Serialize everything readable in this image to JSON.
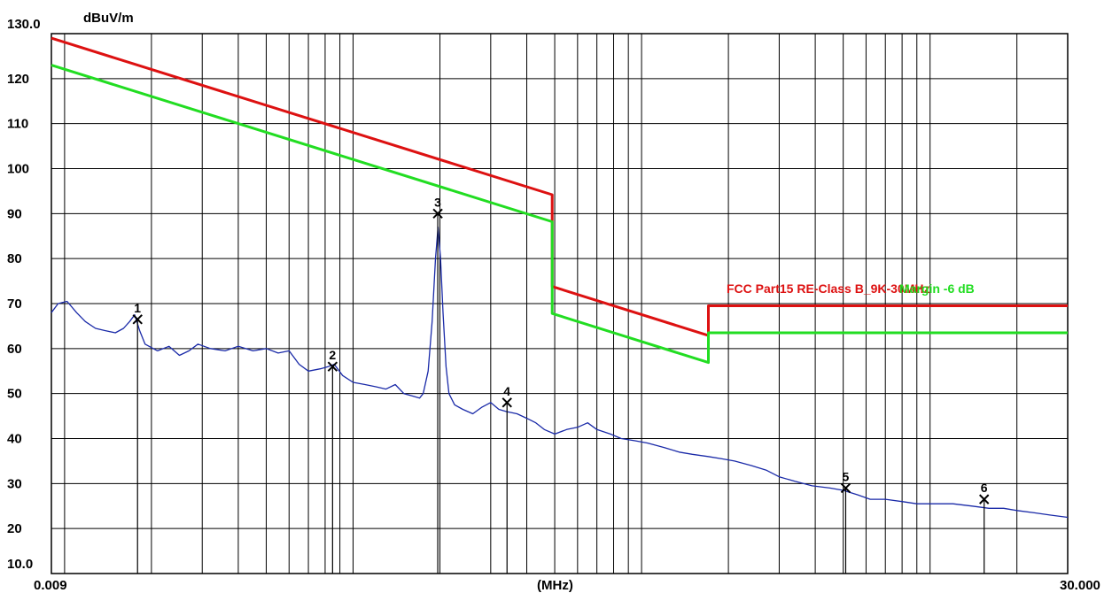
{
  "chart_data": {
    "type": "line",
    "ylabel_unit": "dBuV/m",
    "xlabel_unit": "(MHz)",
    "x_scale": "log",
    "xlim": [
      0.009,
      30.0
    ],
    "ylim": [
      10.0,
      130.0
    ],
    "x_tick_labels": [
      "0.009",
      "(MHz)",
      "30.000"
    ],
    "y_tick_labels": [
      "130.0",
      "120",
      "110",
      "100",
      "90",
      "80",
      "70",
      "60",
      "50",
      "40",
      "30",
      "20",
      "10.0"
    ],
    "y_ticks": [
      130,
      120,
      110,
      100,
      90,
      80,
      70,
      60,
      50,
      40,
      30,
      20,
      10
    ],
    "grid": true,
    "series": [
      {
        "name": "FCC Part15 RE-Class B_9K-30MHz",
        "color": "#dd1111",
        "points": [
          [
            0.009,
            129
          ],
          [
            0.49,
            94.2
          ],
          [
            0.49,
            73.8
          ],
          [
            1.705,
            62.9
          ],
          [
            1.705,
            69.5
          ],
          [
            30.0,
            69.5
          ]
        ]
      },
      {
        "name": "Margin -6 dB",
        "color": "#22dd22",
        "points": [
          [
            0.009,
            123
          ],
          [
            0.49,
            88.2
          ],
          [
            0.49,
            67.8
          ],
          [
            1.705,
            56.9
          ],
          [
            1.705,
            63.5
          ],
          [
            30.0,
            63.5
          ]
        ]
      },
      {
        "color": "#1a2aa8",
        "points": [
          [
            0.009,
            68
          ],
          [
            0.0095,
            70
          ],
          [
            0.0102,
            70.5
          ],
          [
            0.011,
            68
          ],
          [
            0.0118,
            66
          ],
          [
            0.0128,
            64.5
          ],
          [
            0.0138,
            64
          ],
          [
            0.015,
            63.5
          ],
          [
            0.016,
            64.5
          ],
          [
            0.0168,
            66
          ],
          [
            0.0175,
            67.5
          ],
          [
            0.0182,
            64
          ],
          [
            0.019,
            61
          ],
          [
            0.021,
            59.5
          ],
          [
            0.023,
            60.5
          ],
          [
            0.025,
            58.5
          ],
          [
            0.027,
            59.5
          ],
          [
            0.029,
            61
          ],
          [
            0.032,
            60
          ],
          [
            0.036,
            59.5
          ],
          [
            0.04,
            60.5
          ],
          [
            0.045,
            59.5
          ],
          [
            0.05,
            60
          ],
          [
            0.055,
            59
          ],
          [
            0.06,
            59.5
          ],
          [
            0.065,
            56.5
          ],
          [
            0.07,
            55
          ],
          [
            0.077,
            55.5
          ],
          [
            0.082,
            56
          ],
          [
            0.086,
            56.5
          ],
          [
            0.092,
            54
          ],
          [
            0.1,
            52.5
          ],
          [
            0.11,
            52
          ],
          [
            0.12,
            51.5
          ],
          [
            0.13,
            51
          ],
          [
            0.14,
            52
          ],
          [
            0.15,
            50
          ],
          [
            0.16,
            49.5
          ],
          [
            0.17,
            49
          ],
          [
            0.175,
            50
          ],
          [
            0.182,
            55
          ],
          [
            0.188,
            66
          ],
          [
            0.193,
            80
          ],
          [
            0.197,
            87
          ],
          [
            0.201,
            80
          ],
          [
            0.205,
            68
          ],
          [
            0.21,
            56
          ],
          [
            0.215,
            50
          ],
          [
            0.225,
            47.5
          ],
          [
            0.24,
            46.5
          ],
          [
            0.26,
            45.5
          ],
          [
            0.28,
            47
          ],
          [
            0.3,
            48
          ],
          [
            0.32,
            46.5
          ],
          [
            0.34,
            46
          ],
          [
            0.37,
            45.5
          ],
          [
            0.4,
            44.5
          ],
          [
            0.43,
            43.5
          ],
          [
            0.46,
            42
          ],
          [
            0.5,
            41
          ],
          [
            0.55,
            42
          ],
          [
            0.6,
            42.5
          ],
          [
            0.65,
            43.5
          ],
          [
            0.7,
            42
          ],
          [
            0.78,
            41
          ],
          [
            0.85,
            40
          ],
          [
            0.95,
            39.5
          ],
          [
            1.05,
            39
          ],
          [
            1.2,
            38
          ],
          [
            1.35,
            37
          ],
          [
            1.5,
            36.5
          ],
          [
            1.7,
            36
          ],
          [
            1.9,
            35.5
          ],
          [
            2.1,
            35
          ],
          [
            2.4,
            34
          ],
          [
            2.7,
            33
          ],
          [
            3.0,
            31.5
          ],
          [
            3.4,
            30.5
          ],
          [
            3.9,
            29.5
          ],
          [
            4.5,
            29
          ],
          [
            5.0,
            28.5
          ],
          [
            5.6,
            27.5
          ],
          [
            6.2,
            26.5
          ],
          [
            7.0,
            26.5
          ],
          [
            8.0,
            26
          ],
          [
            9.0,
            25.5
          ],
          [
            10.5,
            25.5
          ],
          [
            12.0,
            25.5
          ],
          [
            14.0,
            25
          ],
          [
            16.0,
            24.5
          ],
          [
            18.0,
            24.5
          ],
          [
            20.0,
            24
          ],
          [
            23.0,
            23.5
          ],
          [
            26.0,
            23
          ],
          [
            30.0,
            22.5
          ]
        ]
      }
    ],
    "markers": [
      {
        "label": "1",
        "x": 0.0179,
        "y": 66.5
      },
      {
        "label": "2",
        "x": 0.0849,
        "y": 56.0
      },
      {
        "label": "3",
        "x": 0.1966,
        "y": 90.0
      },
      {
        "label": "4",
        "x": 0.3417,
        "y": 48.0
      },
      {
        "label": "5",
        "x": 5.1,
        "y": 29.0
      },
      {
        "label": "6",
        "x": 15.4,
        "y": 26.5
      }
    ],
    "limit_labels": [
      "FCC Part15 RE-Class B_9K-30MHz",
      "Margin -6 dB"
    ]
  }
}
